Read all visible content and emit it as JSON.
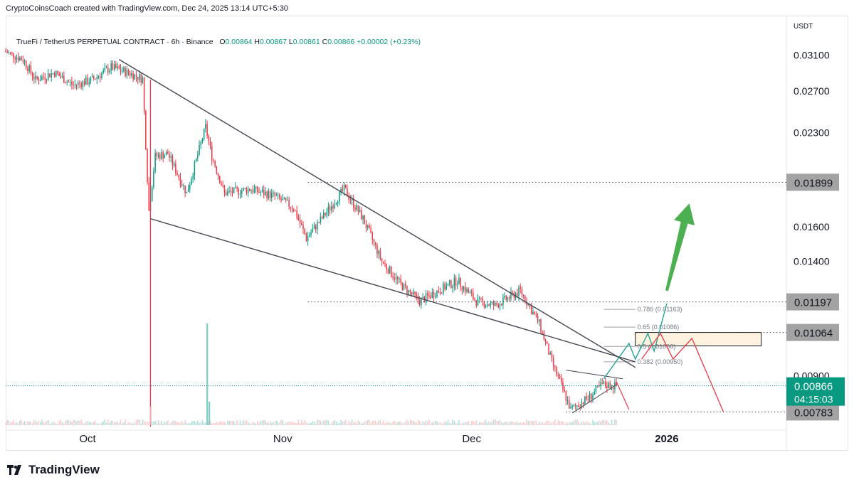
{
  "header": {
    "attribution": "CryptoCoinsCoach created with TradingView.com, Dec 24, 2025 13:14 UTC+5:30"
  },
  "legend": {
    "symbol": "TrueFi / TetherUS PERPETUAL CONTRACT · 6h · Binance",
    "o_label": "O",
    "o": "0.00864",
    "h_label": "H",
    "h": "0.00867",
    "l_label": "L",
    "l": "0.00861",
    "c_label": "C",
    "c": "0.00866",
    "change": "+0.00002 (+0.23%)"
  },
  "price_axis": {
    "currency": "USDT",
    "ticks": [
      "0.03100",
      "0.02700",
      "0.02300",
      "0.01600",
      "0.01400",
      "0.00900"
    ],
    "tick_values": [
      0.031,
      0.027,
      0.023,
      0.016,
      0.014,
      0.009
    ],
    "level_badges": [
      {
        "label": "0.01899",
        "value": 0.01899
      },
      {
        "label": "0.01197",
        "value": 0.01197
      },
      {
        "label": "0.01064",
        "value": 0.01064
      },
      {
        "label": "0.00783",
        "value": 0.00783
      }
    ],
    "last_price_badge": {
      "label": "0.00866",
      "value": 0.00866,
      "countdown": "04:15:03",
      "color": "#089981"
    }
  },
  "time_axis": {
    "labels": [
      "Oct",
      "Nov",
      "Dec",
      "2026"
    ]
  },
  "fib_labels": [
    {
      "label": "0.786 (0.01163)",
      "value": 0.01163
    },
    {
      "label": "0.65 (0.01086)",
      "value": 0.01086
    },
    {
      "label": "0.5 (0.01008)",
      "value": 0.01008
    },
    {
      "label": "0.382 (0.00950)",
      "value": 0.0095
    }
  ],
  "chart_data": {
    "type": "candlestick",
    "timeframe": "6h",
    "x_range": [
      "2025-09-18",
      "2026-01-20"
    ],
    "y_range": [
      0.0074,
      0.034
    ],
    "y_scale": "log",
    "series_path": [
      {
        "date": "2025-09-18",
        "price": 0.0315
      },
      {
        "date": "2025-09-21",
        "price": 0.0305
      },
      {
        "date": "2025-09-23",
        "price": 0.0282
      },
      {
        "date": "2025-09-26",
        "price": 0.029
      },
      {
        "date": "2025-09-29",
        "price": 0.0276
      },
      {
        "date": "2025-10-02",
        "price": 0.0282
      },
      {
        "date": "2025-10-05",
        "price": 0.0296
      },
      {
        "date": "2025-10-08",
        "price": 0.0289
      },
      {
        "date": "2025-10-10",
        "price": 0.0283
      },
      {
        "date": "2025-10-11",
        "price": 0.017
      },
      {
        "date": "2025-10-12",
        "price": 0.021
      },
      {
        "date": "2025-10-14",
        "price": 0.0212
      },
      {
        "date": "2025-10-17",
        "price": 0.0182
      },
      {
        "date": "2025-10-20",
        "price": 0.0235
      },
      {
        "date": "2025-10-21",
        "price": 0.021
      },
      {
        "date": "2025-10-23",
        "price": 0.0182
      },
      {
        "date": "2025-10-27",
        "price": 0.0185
      },
      {
        "date": "2025-10-31",
        "price": 0.018
      },
      {
        "date": "2025-11-03",
        "price": 0.0172
      },
      {
        "date": "2025-11-05",
        "price": 0.0153
      },
      {
        "date": "2025-11-08",
        "price": 0.0168
      },
      {
        "date": "2025-11-11",
        "price": 0.0185
      },
      {
        "date": "2025-11-14",
        "price": 0.0165
      },
      {
        "date": "2025-11-17",
        "price": 0.014
      },
      {
        "date": "2025-11-20",
        "price": 0.0128
      },
      {
        "date": "2025-11-23",
        "price": 0.012
      },
      {
        "date": "2025-11-26",
        "price": 0.0125
      },
      {
        "date": "2025-11-29",
        "price": 0.013
      },
      {
        "date": "2025-12-02",
        "price": 0.012
      },
      {
        "date": "2025-12-05",
        "price": 0.0118
      },
      {
        "date": "2025-12-09",
        "price": 0.0125
      },
      {
        "date": "2025-12-12",
        "price": 0.011
      },
      {
        "date": "2025-12-14",
        "price": 0.0095
      },
      {
        "date": "2025-12-17",
        "price": 0.0079
      },
      {
        "date": "2025-12-20",
        "price": 0.0083
      },
      {
        "date": "2025-12-22",
        "price": 0.0087
      },
      {
        "date": "2025-12-24",
        "price": 0.00866
      }
    ],
    "last": {
      "open": 0.00864,
      "high": 0.00867,
      "low": 0.00861,
      "close": 0.00866
    },
    "horizontal_levels": [
      0.01899,
      0.01197,
      0.01064,
      0.00783
    ],
    "trendlines": [
      {
        "name": "upper",
        "from": {
          "date": "2025-10-06",
          "price": 0.0305
        },
        "to": {
          "date": "2025-12-27",
          "price": 0.0093
        }
      },
      {
        "name": "lower",
        "from": {
          "date": "2025-10-11",
          "price": 0.0165
        },
        "to": {
          "date": "2025-12-27",
          "price": 0.0095
        }
      }
    ],
    "resistance_zone": {
      "from_date": "2025-12-27",
      "to_date": "2026-01-16",
      "low": 0.0101,
      "high": 0.01064
    },
    "bullish_projection": [
      {
        "date": "2025-12-22",
        "price": 0.0089
      },
      {
        "date": "2025-12-26",
        "price": 0.0102
      },
      {
        "date": "2025-12-27",
        "price": 0.0096
      },
      {
        "date": "2025-12-29",
        "price": 0.0106
      },
      {
        "date": "2025-12-30",
        "price": 0.0099
      },
      {
        "date": "2026-01-01",
        "price": 0.0119
      }
    ],
    "bearish_projection": [
      {
        "date": "2025-12-28",
        "price": 0.0096
      },
      {
        "date": "2025-12-31",
        "price": 0.0106
      },
      {
        "date": "2026-01-02",
        "price": 0.0096
      },
      {
        "date": "2026-01-05",
        "price": 0.0104
      },
      {
        "date": "2026-01-10",
        "price": 0.00783
      }
    ],
    "target_arrow": {
      "from": {
        "date": "2026-01-01",
        "price": 0.0125
      },
      "to": {
        "date": "2026-01-03",
        "price": 0.0175
      },
      "color": "#4caf50"
    }
  },
  "colors": {
    "up": "#089981",
    "down": "#f23645",
    "trendline": "#434651",
    "level_badge": "#a3a3a3",
    "zone_fill": "#fff3e0",
    "arrow": "#4caf50"
  },
  "brand": {
    "name": "TradingView"
  }
}
